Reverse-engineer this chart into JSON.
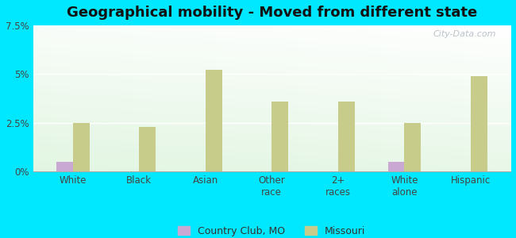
{
  "title": "Geographical mobility - Moved from different state",
  "categories": [
    "White",
    "Black",
    "Asian",
    "Other\nrace",
    "2+\nraces",
    "White\nalone",
    "Hispanic"
  ],
  "country_club": [
    0.5,
    0.0,
    0.0,
    0.0,
    0.0,
    0.5,
    0.0
  ],
  "missouri": [
    2.5,
    2.3,
    5.2,
    3.6,
    3.6,
    2.5,
    4.9
  ],
  "country_club_color": "#c9a8d4",
  "missouri_color": "#c8cc8a",
  "outer_background": "#00e8ff",
  "ylim": [
    0,
    7.5
  ],
  "yticks": [
    0,
    2.5,
    5.0,
    7.5
  ],
  "ytick_labels": [
    "0%",
    "2.5%",
    "5%",
    "7.5%"
  ],
  "bar_width": 0.25,
  "legend_labels": [
    "Country Club, MO",
    "Missouri"
  ],
  "title_fontsize": 13,
  "watermark": "City-Data.com"
}
